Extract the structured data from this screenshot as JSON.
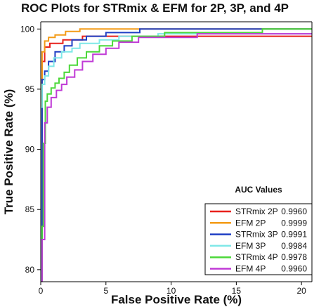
{
  "chart_data": {
    "type": "line",
    "title": "ROC Plots for STRmix & EFM for 2P, 3P, and 4P",
    "xlabel": "False Positive Rate (%)",
    "ylabel": "True Positive Rate (%)",
    "xlim": [
      0,
      20.8
    ],
    "ylim": [
      79,
      100.6
    ],
    "x_ticks": [
      0,
      5,
      10,
      15,
      20
    ],
    "y_ticks": [
      80,
      85,
      90,
      95,
      100
    ],
    "legend": {
      "title": "AUC Values",
      "placement": "bottom-right"
    },
    "series": [
      {
        "name": "STRmix 2P",
        "auc": "0.9960",
        "color": "#e8211c",
        "x": [
          0,
          0.1,
          0.1,
          0.3,
          0.3,
          0.7,
          0.7,
          1.7,
          1.7,
          3.2,
          3.2,
          20.8
        ],
        "y": [
          79,
          79,
          97.3,
          97.3,
          98.5,
          98.5,
          98.8,
          98.8,
          99.1,
          99.1,
          99.4,
          99.4
        ]
      },
      {
        "name": "EFM 2P",
        "auc": "0.9999",
        "color": "#f39c18",
        "x": [
          0,
          0,
          0.1,
          0.1,
          0.3,
          0.3,
          0.6,
          0.6,
          1.1,
          1.1,
          1.9,
          1.9,
          3.0,
          3.0,
          20.8
        ],
        "y": [
          79,
          95.5,
          95.5,
          98.1,
          98.1,
          99.0,
          99.0,
          99.3,
          99.3,
          99.5,
          99.5,
          99.8,
          99.8,
          100,
          100
        ]
      },
      {
        "name": "STRmix 3P",
        "auc": "0.9991",
        "color": "#1f3fc4",
        "x": [
          0,
          0.1,
          0.1,
          0.3,
          0.3,
          0.6,
          0.6,
          1.1,
          1.1,
          1.8,
          1.8,
          2.4,
          2.4,
          3.5,
          3.5,
          5.0,
          5.0,
          7.6,
          7.6,
          20.8
        ],
        "y": [
          79,
          79,
          95.8,
          95.8,
          96.5,
          96.5,
          97.3,
          97.3,
          98.1,
          98.1,
          98.6,
          98.6,
          99.1,
          99.1,
          99.4,
          99.4,
          99.7,
          99.7,
          100,
          100
        ]
      },
      {
        "name": "EFM 3P",
        "auc": "0.9984",
        "color": "#7fe8e8",
        "x": [
          0,
          0,
          0.1,
          0.1,
          0.3,
          0.3,
          0.6,
          0.6,
          1.0,
          1.0,
          1.6,
          1.6,
          2.4,
          2.4,
          3.0,
          3.0,
          4.5,
          4.5,
          6.0,
          6.0,
          9.0,
          9.0,
          20.8
        ],
        "y": [
          79,
          93.5,
          93.5,
          95.4,
          95.4,
          96.1,
          96.1,
          96.9,
          96.9,
          97.6,
          97.6,
          98.1,
          98.1,
          98.4,
          98.4,
          98.8,
          98.8,
          99.1,
          99.1,
          99.4,
          99.4,
          99.6,
          99.6
        ]
      },
      {
        "name": "STRmix 4P",
        "auc": "0.9978",
        "color": "#4cd83a",
        "x": [
          0,
          0.1,
          0.1,
          0.2,
          0.2,
          0.35,
          0.35,
          0.5,
          0.5,
          0.8,
          0.8,
          1.1,
          1.1,
          1.4,
          1.4,
          1.8,
          1.8,
          2.2,
          2.2,
          2.8,
          2.8,
          3.5,
          3.5,
          4.5,
          4.5,
          5.5,
          5.5,
          7.0,
          7.0,
          9.5,
          9.5,
          17.0,
          17.0,
          20.8
        ],
        "y": [
          79,
          79,
          83.6,
          83.6,
          90.5,
          90.5,
          94.0,
          94.0,
          94.6,
          94.6,
          95.1,
          95.1,
          95.5,
          95.5,
          95.9,
          95.9,
          96.4,
          96.4,
          97.0,
          97.0,
          97.6,
          97.6,
          98.1,
          98.1,
          98.6,
          98.6,
          99.0,
          99.0,
          99.4,
          99.4,
          99.7,
          99.7,
          100,
          100
        ]
      },
      {
        "name": "EFM 4P",
        "auc": "0.9960",
        "color": "#c03ad6",
        "x": [
          0,
          0.1,
          0.1,
          0.3,
          0.3,
          0.5,
          0.5,
          0.8,
          0.8,
          1.2,
          1.2,
          1.6,
          1.6,
          2.0,
          2.0,
          2.6,
          2.6,
          3.2,
          3.2,
          4.0,
          4.0,
          5.0,
          5.0,
          6.0,
          6.0,
          7.5,
          7.5,
          12.0,
          12.0,
          20.8
        ],
        "y": [
          79,
          79,
          82.5,
          82.5,
          92.2,
          92.2,
          93.5,
          93.5,
          94.3,
          94.3,
          94.9,
          94.9,
          95.4,
          95.4,
          96.0,
          96.0,
          96.6,
          96.6,
          97.3,
          97.3,
          97.9,
          97.9,
          98.4,
          98.4,
          98.9,
          98.9,
          99.3,
          99.3,
          99.6,
          99.6
        ]
      }
    ]
  }
}
